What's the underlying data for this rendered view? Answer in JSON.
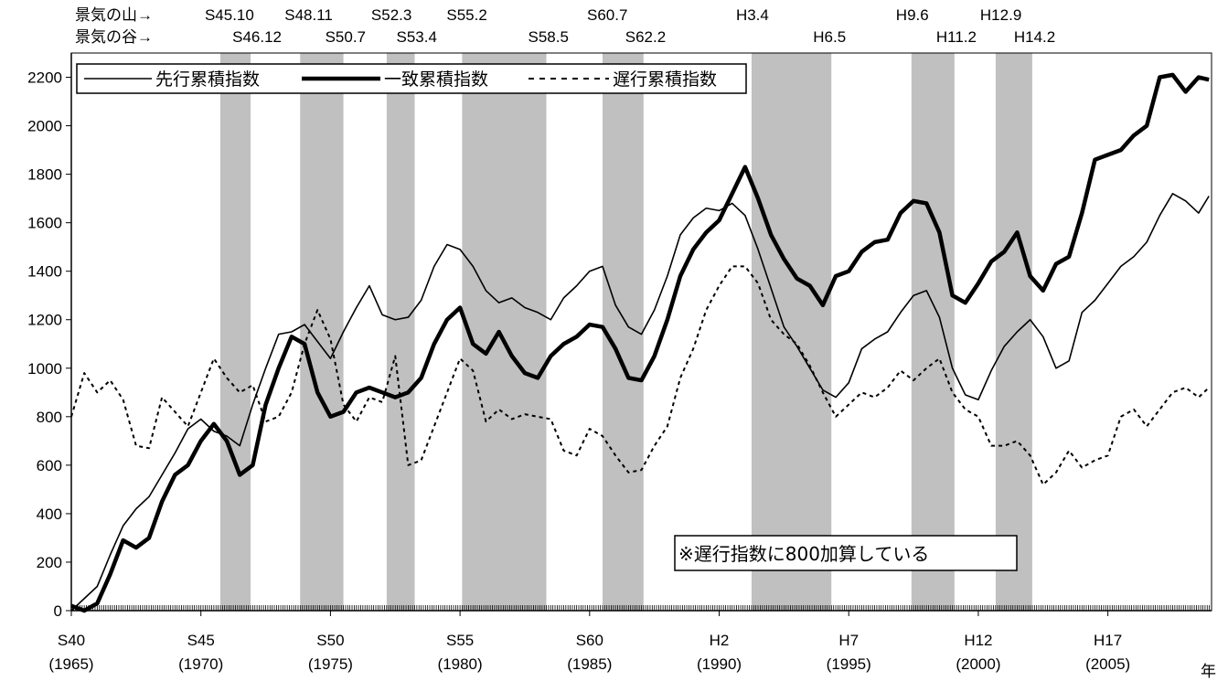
{
  "chart_data": {
    "type": "line",
    "title": "",
    "xlabel": "年",
    "ylabel": "",
    "ylim": [
      0,
      2300
    ],
    "xlim": [
      1965.0,
      2009.0
    ],
    "yticks": [
      0,
      200,
      400,
      600,
      800,
      1000,
      1200,
      1400,
      1600,
      1800,
      2000,
      2200
    ],
    "xticks": [
      {
        "era": "S40",
        "year": "(1965)",
        "x": 1965.0
      },
      {
        "era": "S45",
        "year": "(1970)",
        "x": 1970.0
      },
      {
        "era": "S50",
        "year": "(1975)",
        "x": 1975.0
      },
      {
        "era": "S55",
        "year": "(1980)",
        "x": 1980.0
      },
      {
        "era": "S60",
        "year": "(1985)",
        "x": 1985.0
      },
      {
        "era": "H2",
        "year": "(1990)",
        "x": 1990.0
      },
      {
        "era": "H7",
        "year": "(1995)",
        "x": 1995.0
      },
      {
        "era": "H12",
        "year": "(2000)",
        "x": 2000.0
      },
      {
        "era": "H17",
        "year": "(2005)",
        "x": 2005.0
      }
    ],
    "row_labels": {
      "peak": "景気の山→",
      "trough": "景気の谷→"
    },
    "recessions": [
      {
        "peak": "S45.10",
        "trough": "S46.12",
        "start": 1970.75,
        "end": 1971.92
      },
      {
        "peak": "S48.11",
        "trough": "S50.7",
        "start": 1973.83,
        "end": 1975.5
      },
      {
        "peak": "S52.3",
        "trough": "S53.4",
        "start": 1977.17,
        "end": 1978.25
      },
      {
        "peak": "S55.2",
        "trough": "S58.5",
        "start": 1980.08,
        "end": 1983.33
      },
      {
        "peak": "S60.7",
        "trough": "S62.2",
        "start": 1985.5,
        "end": 1987.08
      },
      {
        "peak": "H3.4",
        "trough": "H6.5",
        "start": 1991.25,
        "end": 1994.33
      },
      {
        "peak": "H9.6",
        "trough": "H11.2",
        "start": 1997.42,
        "end": 1999.08
      },
      {
        "peak": "H12.9",
        "trough": "H14.2",
        "start": 2000.67,
        "end": 2002.08
      }
    ],
    "legend": {
      "position": "top-left"
    },
    "annotation": "※遅行指数に800加算している",
    "series": [
      {
        "name": "先行累積指数",
        "style": "thin",
        "x": [
          1965.0,
          1965.5,
          1966.0,
          1966.5,
          1967.0,
          1967.5,
          1968.0,
          1968.5,
          1969.0,
          1969.5,
          1970.0,
          1970.5,
          1971.0,
          1971.5,
          1972.0,
          1972.5,
          1973.0,
          1973.5,
          1974.0,
          1974.5,
          1975.0,
          1975.5,
          1976.0,
          1976.5,
          1977.0,
          1977.5,
          1978.0,
          1978.5,
          1979.0,
          1979.5,
          1980.0,
          1980.5,
          1981.0,
          1981.5,
          1982.0,
          1982.5,
          1983.0,
          1983.5,
          1984.0,
          1984.5,
          1985.0,
          1985.5,
          1986.0,
          1986.5,
          1987.0,
          1987.5,
          1988.0,
          1988.5,
          1989.0,
          1989.5,
          1990.0,
          1990.5,
          1991.0,
          1991.5,
          1992.0,
          1992.5,
          1993.0,
          1993.5,
          1994.0,
          1994.5,
          1995.0,
          1995.5,
          1996.0,
          1996.5,
          1997.0,
          1997.5,
          1998.0,
          1998.5,
          1999.0,
          1999.5,
          2000.0,
          2000.5,
          2001.0,
          2001.5,
          2002.0,
          2002.5,
          2003.0,
          2003.5,
          2004.0,
          2004.5,
          2005.0,
          2005.5,
          2006.0,
          2006.5,
          2007.0,
          2007.5,
          2008.0,
          2008.5,
          2008.9
        ],
        "values": [
          0,
          50,
          100,
          230,
          350,
          420,
          470,
          560,
          650,
          750,
          790,
          740,
          720,
          680,
          850,
          1000,
          1140,
          1150,
          1180,
          1110,
          1040,
          1150,
          1250,
          1340,
          1220,
          1200,
          1210,
          1280,
          1420,
          1510,
          1490,
          1420,
          1320,
          1270,
          1290,
          1250,
          1230,
          1200,
          1290,
          1340,
          1400,
          1420,
          1260,
          1170,
          1140,
          1240,
          1380,
          1550,
          1620,
          1660,
          1650,
          1680,
          1630,
          1490,
          1330,
          1170,
          1090,
          1000,
          910,
          880,
          940,
          1080,
          1120,
          1150,
          1230,
          1300,
          1320,
          1210,
          1000,
          890,
          870,
          990,
          1090,
          1150,
          1200,
          1130,
          1000,
          1030,
          1230,
          1280,
          1350,
          1420,
          1460,
          1520,
          1630,
          1720,
          1690,
          1640,
          1710
        ]
      },
      {
        "name": "一致累積指数",
        "style": "thick",
        "x": [
          1965.0,
          1965.5,
          1966.0,
          1966.5,
          1967.0,
          1967.5,
          1968.0,
          1968.5,
          1969.0,
          1969.5,
          1970.0,
          1970.5,
          1971.0,
          1971.5,
          1972.0,
          1972.5,
          1973.0,
          1973.5,
          1974.0,
          1974.5,
          1975.0,
          1975.5,
          1976.0,
          1976.5,
          1977.0,
          1977.5,
          1978.0,
          1978.5,
          1979.0,
          1979.5,
          1980.0,
          1980.5,
          1981.0,
          1981.5,
          1982.0,
          1982.5,
          1983.0,
          1983.5,
          1984.0,
          1984.5,
          1985.0,
          1985.5,
          1986.0,
          1986.5,
          1987.0,
          1987.5,
          1988.0,
          1988.5,
          1989.0,
          1989.5,
          1990.0,
          1990.5,
          1991.0,
          1991.5,
          1992.0,
          1992.5,
          1993.0,
          1993.5,
          1994.0,
          1994.5,
          1995.0,
          1995.5,
          1996.0,
          1996.5,
          1997.0,
          1997.5,
          1998.0,
          1998.5,
          1999.0,
          1999.5,
          2000.0,
          2000.5,
          2001.0,
          2001.5,
          2002.0,
          2002.5,
          2003.0,
          2003.5,
          2004.0,
          2004.5,
          2005.0,
          2005.5,
          2006.0,
          2006.5,
          2007.0,
          2007.5,
          2008.0,
          2008.5,
          2008.9
        ],
        "values": [
          20,
          0,
          30,
          150,
          290,
          260,
          300,
          450,
          560,
          600,
          700,
          770,
          700,
          560,
          600,
          850,
          1000,
          1130,
          1100,
          900,
          800,
          820,
          900,
          920,
          900,
          880,
          900,
          960,
          1100,
          1200,
          1250,
          1100,
          1060,
          1150,
          1050,
          980,
          960,
          1050,
          1100,
          1130,
          1180,
          1170,
          1080,
          960,
          950,
          1050,
          1200,
          1380,
          1490,
          1560,
          1610,
          1720,
          1830,
          1700,
          1550,
          1450,
          1370,
          1340,
          1260,
          1380,
          1400,
          1480,
          1520,
          1530,
          1640,
          1690,
          1680,
          1560,
          1300,
          1270,
          1350,
          1440,
          1480,
          1560,
          1380,
          1320,
          1430,
          1460,
          1640,
          1860,
          1880,
          1900,
          1960,
          2000,
          2200,
          2210,
          2140,
          2200,
          2190
        ]
      },
      {
        "name": "遅行累積指数",
        "style": "dotted",
        "x": [
          1965.0,
          1965.5,
          1966.0,
          1966.5,
          1967.0,
          1967.5,
          1968.0,
          1968.5,
          1969.0,
          1969.5,
          1970.0,
          1970.5,
          1971.0,
          1971.5,
          1972.0,
          1972.5,
          1973.0,
          1973.5,
          1974.0,
          1974.5,
          1975.0,
          1975.5,
          1976.0,
          1976.5,
          1977.0,
          1977.5,
          1978.0,
          1978.5,
          1979.0,
          1979.5,
          1980.0,
          1980.5,
          1981.0,
          1981.5,
          1982.0,
          1982.5,
          1983.0,
          1983.5,
          1984.0,
          1984.5,
          1985.0,
          1985.5,
          1986.0,
          1986.5,
          1987.0,
          1987.5,
          1988.0,
          1988.5,
          1989.0,
          1989.5,
          1990.0,
          1990.5,
          1991.0,
          1991.5,
          1992.0,
          1992.5,
          1993.0,
          1993.5,
          1994.0,
          1994.5,
          1995.0,
          1995.5,
          1996.0,
          1996.5,
          1997.0,
          1997.5,
          1998.0,
          1998.5,
          1999.0,
          1999.5,
          2000.0,
          2000.5,
          2001.0,
          2001.5,
          2002.0,
          2002.5,
          2003.0,
          2003.5,
          2004.0,
          2004.5,
          2005.0,
          2005.5,
          2006.0,
          2006.5,
          2007.0,
          2007.5,
          2008.0,
          2008.5,
          2008.9
        ],
        "values": [
          800,
          980,
          900,
          950,
          870,
          680,
          670,
          880,
          820,
          760,
          900,
          1040,
          960,
          900,
          930,
          780,
          800,
          900,
          1100,
          1240,
          1120,
          850,
          780,
          880,
          860,
          1050,
          600,
          620,
          760,
          900,
          1040,
          990,
          780,
          830,
          790,
          810,
          800,
          790,
          660,
          640,
          750,
          720,
          640,
          570,
          580,
          680,
          760,
          960,
          1080,
          1240,
          1340,
          1420,
          1420,
          1350,
          1200,
          1140,
          1100,
          1010,
          900,
          800,
          850,
          900,
          880,
          920,
          990,
          950,
          1000,
          1040,
          900,
          830,
          800,
          680,
          680,
          700,
          640,
          520,
          570,
          660,
          590,
          620,
          640,
          800,
          830,
          760,
          830,
          900,
          920,
          880,
          920
        ]
      }
    ]
  }
}
